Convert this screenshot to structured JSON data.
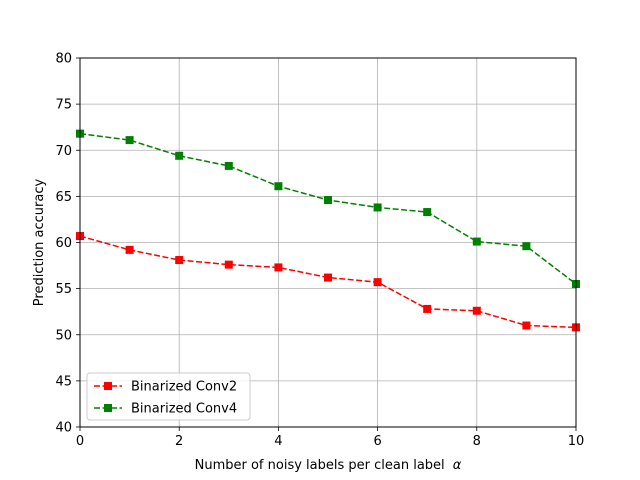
{
  "chart_data": {
    "type": "line",
    "title": "",
    "xlabel": "Number of noisy labels per clean label",
    "xlabel_symbol": "α",
    "ylabel": "Prediction accuracy",
    "xlim": [
      0,
      10
    ],
    "ylim": [
      40,
      80
    ],
    "xticks": [
      0,
      2,
      4,
      6,
      8,
      10
    ],
    "yticks": [
      40,
      45,
      50,
      55,
      60,
      65,
      70,
      75,
      80
    ],
    "grid": true,
    "legend_position": "lower-left",
    "x": [
      0,
      1,
      2,
      3,
      4,
      5,
      6,
      7,
      8,
      9,
      10
    ],
    "series": [
      {
        "name": "Binarized Conv2",
        "color": "#ff0000",
        "marker": "square",
        "line_style": "dashed",
        "values": [
          60.7,
          59.2,
          58.1,
          57.6,
          57.3,
          56.2,
          55.7,
          52.8,
          52.6,
          51.0,
          50.8
        ]
      },
      {
        "name": "Binarized Conv4",
        "color": "#008000",
        "marker": "square",
        "line_style": "dashed",
        "values": [
          71.8,
          71.1,
          69.4,
          68.3,
          66.1,
          64.6,
          63.8,
          63.3,
          60.1,
          59.6,
          55.5
        ]
      }
    ]
  }
}
